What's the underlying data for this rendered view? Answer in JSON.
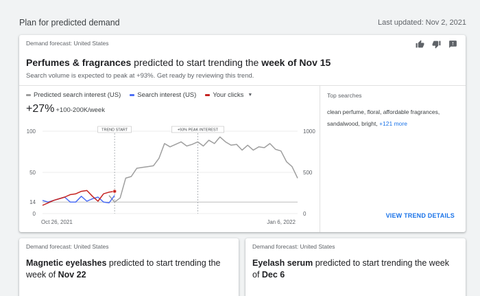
{
  "header": {
    "title": "Plan for predicted demand",
    "last_updated": "Last updated: Nov 2, 2021"
  },
  "main_card": {
    "forecast_label": "Demand forecast: United States",
    "feedback_icons": [
      "thumb-up-icon",
      "thumb-down-icon",
      "feedback-icon"
    ],
    "headline_topic": "Perfumes & fragrances",
    "headline_mid": " predicted to start trending the ",
    "headline_week": "week of Nov 15",
    "subline": "Search volume is expected to peak at +93%. Get ready by reviewing this trend.",
    "legend": [
      {
        "label": "Predicted search interest (US)",
        "color": "#9e9e9e"
      },
      {
        "label": "Search interest (US)",
        "color": "#4c6ef5"
      },
      {
        "label": "Your clicks",
        "color": "#c5221f"
      }
    ],
    "metric_value": "+27%",
    "metric_detail": "+100-200K/week",
    "top_searches_title": "Top searches",
    "top_searches_text": "clean perfume, floral, affordable fragrances, sandalwood, bright, ",
    "top_searches_more": "+121 more",
    "view_trend_details": "VIEW TREND DETAILS"
  },
  "chart_data": {
    "type": "line",
    "x_start_label": "Oct 26, 2021",
    "x_end_label": "Jan 6, 2022",
    "left_ticks": [
      "100",
      "50",
      "14",
      "0"
    ],
    "right_ticks": [
      "1000",
      "500",
      "0"
    ],
    "left_ylim": [
      0,
      100
    ],
    "right_ylim": [
      0,
      1000
    ],
    "reference_value": 14,
    "annotations": [
      {
        "label": "TREND START",
        "index": 13
      },
      {
        "label": "+93% PEAK INTEREST",
        "index": 28
      }
    ],
    "series": [
      {
        "name": "Predicted search interest (US)",
        "color": "#9e9e9e",
        "start_index": 12,
        "values": [
          22,
          14,
          19,
          43,
          45,
          55,
          56,
          57,
          58,
          67,
          85,
          81,
          84,
          87,
          82,
          84,
          87,
          82,
          89,
          85,
          93,
          87,
          83,
          84,
          77,
          83,
          77,
          81,
          80,
          85,
          78,
          76,
          63,
          57,
          43
        ]
      },
      {
        "name": "Search interest (US)",
        "color": "#4c6ef5",
        "start_index": 0,
        "values": [
          16,
          14,
          16,
          18,
          20,
          14,
          14,
          21,
          15,
          18,
          20,
          14,
          13,
          22
        ]
      },
      {
        "name": "Your clicks",
        "color": "#c5221f",
        "start_index": 0,
        "values": [
          10,
          13,
          16,
          18,
          20,
          23,
          24,
          27,
          28,
          21,
          15,
          24,
          26,
          27
        ]
      }
    ]
  },
  "bottom_cards": [
    {
      "forecast_label": "Demand forecast: United States",
      "headline_topic": "Magnetic eyelashes",
      "headline_mid": " predicted to start trending the week of ",
      "headline_week": "Nov 22"
    },
    {
      "forecast_label": "Demand forecast: United States",
      "headline_topic": "Eyelash serum",
      "headline_mid": " predicted to start trending the week of ",
      "headline_week": "Dec 6"
    }
  ],
  "colors": {
    "background": "#f1f3f4",
    "link": "#1a73e8",
    "predicted": "#9e9e9e",
    "search_interest": "#4c6ef5",
    "clicks": "#c5221f"
  }
}
